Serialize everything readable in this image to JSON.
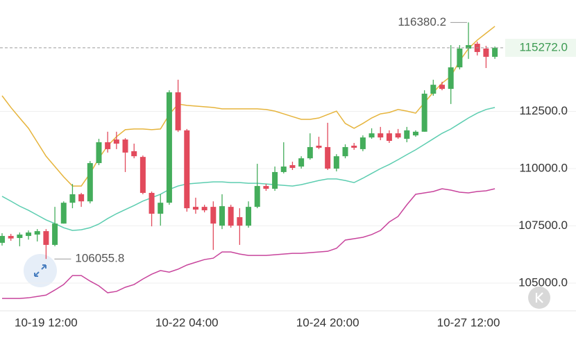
{
  "chart_data": {
    "type": "candlestick",
    "categories": [
      null,
      null,
      null,
      null,
      null,
      "10-19 12:00",
      null,
      null,
      null,
      null,
      null,
      null,
      null,
      null,
      null,
      null,
      null,
      null,
      null,
      null,
      null,
      "10-22 04:00",
      null,
      null,
      null,
      null,
      null,
      null,
      null,
      null,
      null,
      null,
      null,
      null,
      null,
      null,
      null,
      "10-24 20:00",
      null,
      null,
      null,
      null,
      null,
      null,
      null,
      null,
      null,
      null,
      null,
      null,
      null,
      null,
      null,
      "10-27 12:00",
      null,
      null,
      null
    ],
    "open": [
      106760,
      107060,
      106970,
      107060,
      107120,
      107270,
      106670,
      107600,
      108510,
      108880,
      108570,
      110240,
      111150,
      111270,
      111270,
      110760,
      110510,
      108940,
      108030,
      108510,
      113330,
      111670,
      108330,
      108330,
      108330,
      107510,
      108330,
      107880,
      107510,
      108330,
      109240,
      109120,
      109850,
      110150,
      110090,
      110450,
      111000,
      110940,
      110000,
      110540,
      111000,
      110850,
      111360,
      111540,
      111540,
      111540,
      111300,
      111450,
      111610,
      113270,
      113660,
      113480,
      114420,
      115240,
      115450,
      115240,
      114880
    ],
    "high": [
      107180,
      107150,
      107210,
      107300,
      107360,
      107360,
      108330,
      108570,
      109330,
      108940,
      110330,
      111300,
      111610,
      111610,
      111330,
      111090,
      110570,
      109000,
      108880,
      113420,
      113880,
      111730,
      108730,
      108420,
      108570,
      108880,
      108420,
      108270,
      108570,
      110210,
      109330,
      110090,
      111150,
      110300,
      110540,
      111540,
      111390,
      112000,
      110630,
      111060,
      111120,
      111450,
      111760,
      111820,
      111670,
      111730,
      111820,
      111670,
      113420,
      113880,
      113790,
      115390,
      115390,
      116380.2,
      115540,
      115360,
      115330
    ],
    "low": [
      106640,
      106850,
      106610,
      106900,
      106820,
      106055.8,
      106610,
      107600,
      108270,
      108330,
      108480,
      110150,
      110700,
      110850,
      109850,
      110450,
      108880,
      107480,
      107510,
      108420,
      111600,
      108120,
      108030,
      108090,
      106450,
      107360,
      107420,
      106670,
      107420,
      108270,
      109030,
      109030,
      109790,
      109940,
      110000,
      110390,
      110850,
      109940,
      109880,
      110450,
      110820,
      110760,
      111300,
      111240,
      111120,
      111300,
      111150,
      111390,
      111610,
      113180,
      113420,
      112820,
      114330,
      114790,
      114940,
      114390,
      114790
    ],
    "close": [
      107060,
      106950,
      107120,
      107210,
      107270,
      106670,
      107600,
      108510,
      108880,
      108570,
      110240,
      111150,
      110850,
      111090,
      110700,
      110540,
      108940,
      108030,
      108510,
      113330,
      111670,
      108270,
      108210,
      108180,
      107600,
      108360,
      107510,
      107510,
      108330,
      109240,
      109120,
      109850,
      110090,
      110030,
      110450,
      110940,
      110910,
      110000,
      110540,
      110940,
      110910,
      111360,
      111540,
      111360,
      111210,
      111360,
      111670,
      111610,
      113270,
      113660,
      113480,
      114420,
      115240,
      115390,
      115090,
      114880,
      115272.0
    ],
    "up_color": "#44ad5b",
    "down_color": "#e24a5c",
    "bands": [
      {
        "color": "#e6b43c",
        "values": [
          113180,
          112670,
          112210,
          111760,
          111150,
          110540,
          110090,
          109640,
          109240,
          109240,
          109790,
          110450,
          111000,
          111390,
          111700,
          111730,
          111730,
          111700,
          111730,
          112360,
          112820,
          112760,
          112730,
          112700,
          112670,
          112610,
          112610,
          112610,
          112610,
          112610,
          112580,
          112510,
          112390,
          112270,
          112150,
          112150,
          112210,
          112360,
          112510,
          111970,
          111760,
          111970,
          112210,
          112390,
          112450,
          112580,
          112510,
          112420,
          112880,
          113330,
          113730,
          114030,
          114700,
          115240,
          115610,
          115910,
          116210
        ]
      },
      {
        "color": "#5ccdb0",
        "values": [
          108790,
          108580,
          108360,
          108180,
          107970,
          107760,
          107600,
          107420,
          107300,
          107330,
          107420,
          107580,
          107820,
          108030,
          108210,
          108390,
          108580,
          108730,
          108880,
          109090,
          109240,
          109330,
          109360,
          109390,
          109420,
          109420,
          109390,
          109390,
          109360,
          109360,
          109330,
          109300,
          109270,
          109240,
          109300,
          109390,
          109480,
          109550,
          109550,
          109480,
          109390,
          109580,
          109790,
          110000,
          110180,
          110390,
          110610,
          110820,
          111060,
          111300,
          111540,
          111730,
          111970,
          112210,
          112420,
          112580,
          112670
        ]
      },
      {
        "color": "#c8449c",
        "values": [
          104330,
          104330,
          104330,
          104360,
          104420,
          104480,
          104700,
          104940,
          105330,
          105330,
          105090,
          104880,
          104580,
          104640,
          104820,
          104940,
          105180,
          105390,
          105550,
          105480,
          105610,
          105790,
          105910,
          106030,
          106090,
          106360,
          106360,
          106270,
          106210,
          106210,
          106210,
          106240,
          106270,
          106300,
          106300,
          106330,
          106360,
          106390,
          106520,
          106880,
          106940,
          107000,
          107120,
          107300,
          107670,
          107910,
          108420,
          108880,
          108940,
          109000,
          109120,
          109060,
          108970,
          108940,
          109000,
          109030,
          109120
        ]
      }
    ],
    "ylim": [
      103790,
      117360
    ],
    "yticks": [
      {
        "value": 105000,
        "label": "105000.0"
      },
      {
        "value": 107500,
        "label": "107500.0"
      },
      {
        "value": 110000,
        "label": "110000.0"
      },
      {
        "value": 112500,
        "label": "112500.0"
      }
    ],
    "grid": true,
    "last_price": {
      "value": 115272.0,
      "label": "115272.0"
    },
    "max_label": "116380.2",
    "min_label": "106055.8"
  }
}
